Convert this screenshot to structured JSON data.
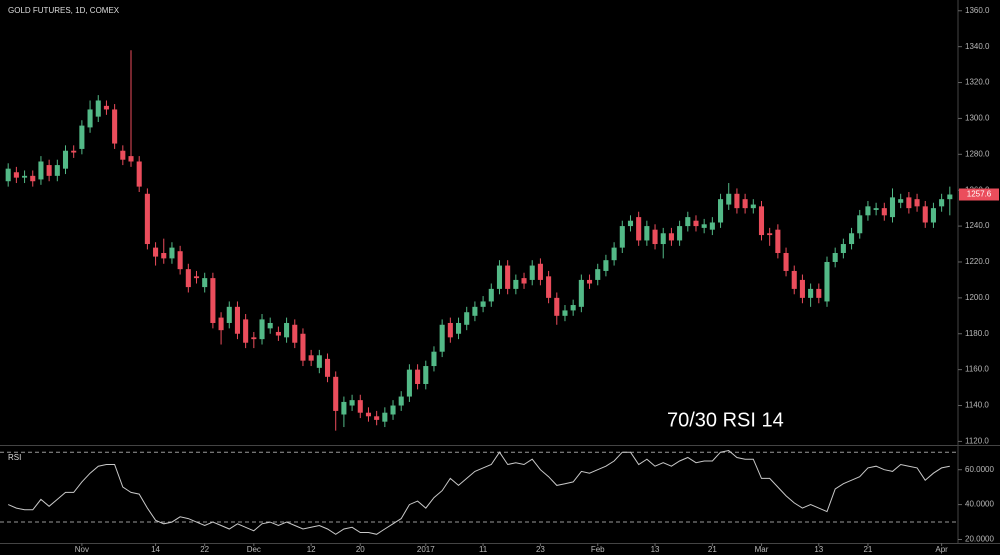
{
  "chart_data": [
    {
      "type": "candlestick",
      "title": "GOLD FUTURES, 1D, COMEX",
      "annotation": "70/30 RSI 14",
      "up_color": "#53b987",
      "down_color": "#eb4d5c",
      "xlim": [
        -1,
        116
      ],
      "xticks": [
        {
          "value": 9,
          "label": "Nov"
        },
        {
          "value": 18,
          "label": "14"
        },
        {
          "value": 24,
          "label": "22"
        },
        {
          "value": 30,
          "label": "Dec"
        },
        {
          "value": 37,
          "label": "12"
        },
        {
          "value": 43,
          "label": "20"
        },
        {
          "value": 51,
          "label": "2017"
        },
        {
          "value": 58,
          "label": "11"
        },
        {
          "value": 65,
          "label": "23"
        },
        {
          "value": 72,
          "label": "Feb"
        },
        {
          "value": 79,
          "label": "13"
        },
        {
          "value": 86,
          "label": "21"
        },
        {
          "value": 92,
          "label": "Mar"
        },
        {
          "value": 99,
          "label": "13"
        },
        {
          "value": 105,
          "label": "21"
        },
        {
          "value": 114,
          "label": "Apr"
        }
      ],
      "ylim": [
        1118,
        1366
      ],
      "yticks": [
        {
          "value": 1120,
          "label": "1120.0"
        },
        {
          "value": 1140,
          "label": "1140.0"
        },
        {
          "value": 1160,
          "label": "1160.0"
        },
        {
          "value": 1180,
          "label": "1180.0"
        },
        {
          "value": 1200,
          "label": "1200.0"
        },
        {
          "value": 1220,
          "label": "1220.0"
        },
        {
          "value": 1240,
          "label": "1240.0"
        },
        {
          "value": 1260,
          "label": "1260.0"
        },
        {
          "value": 1280,
          "label": "1280.0"
        },
        {
          "value": 1300,
          "label": "1300.0"
        },
        {
          "value": 1320,
          "label": "1320.0"
        },
        {
          "value": 1340,
          "label": "1340.0"
        },
        {
          "value": 1360,
          "label": "1360.0"
        }
      ],
      "last_price": 1257.6,
      "open": [
        1265,
        1270,
        1267,
        1268,
        1266,
        1274,
        1268,
        1272,
        1282,
        1283,
        1295,
        1301,
        1307,
        1305,
        1282,
        1279,
        1276,
        1258,
        1228,
        1225,
        1222,
        1226,
        1216,
        1212,
        1206,
        1211,
        1189,
        1186,
        1195,
        1188,
        1178,
        1177,
        1183,
        1181,
        1178,
        1185,
        1180,
        1168,
        1161,
        1166,
        1156,
        1135,
        1140,
        1143,
        1136,
        1134,
        1131,
        1135,
        1140,
        1145,
        1160,
        1152,
        1162,
        1170,
        1186,
        1180,
        1185,
        1190,
        1195,
        1198,
        1205,
        1218,
        1205,
        1211,
        1210,
        1219,
        1212,
        1200,
        1190,
        1193,
        1195,
        1210,
        1210,
        1215,
        1221,
        1228,
        1240,
        1245,
        1232,
        1238,
        1230,
        1236,
        1232,
        1240,
        1243,
        1239,
        1238,
        1242,
        1252,
        1258,
        1255,
        1250,
        1251,
        1236,
        1238,
        1225,
        1215,
        1210,
        1200,
        1205,
        1198,
        1220,
        1225,
        1230,
        1236,
        1246,
        1249,
        1250,
        1245,
        1253,
        1256,
        1255,
        1251,
        1242,
        1251,
        1255
      ],
      "high": [
        1275,
        1273,
        1271,
        1271,
        1279,
        1277,
        1277,
        1285,
        1285,
        1299,
        1310,
        1313,
        1310,
        1308,
        1285,
        1338,
        1279,
        1261,
        1231,
        1233,
        1231,
        1229,
        1219,
        1215,
        1214,
        1214,
        1192,
        1198,
        1198,
        1191,
        1181,
        1191,
        1189,
        1184,
        1189,
        1188,
        1183,
        1171,
        1171,
        1169,
        1159,
        1145,
        1146,
        1146,
        1139,
        1137,
        1139,
        1143,
        1148,
        1163,
        1163,
        1165,
        1173,
        1188,
        1189,
        1189,
        1195,
        1198,
        1201,
        1208,
        1221,
        1221,
        1213,
        1214,
        1221,
        1222,
        1215,
        1203,
        1196,
        1199,
        1213,
        1213,
        1219,
        1224,
        1231,
        1243,
        1246,
        1248,
        1243,
        1241,
        1239,
        1239,
        1243,
        1248,
        1246,
        1244,
        1245,
        1258,
        1264,
        1261,
        1258,
        1255,
        1254,
        1239,
        1241,
        1228,
        1218,
        1213,
        1208,
        1208,
        1223,
        1228,
        1233,
        1239,
        1249,
        1254,
        1253,
        1253,
        1261,
        1258,
        1259,
        1258,
        1254,
        1253,
        1258,
        1262
      ],
      "low": [
        1262,
        1264,
        1264,
        1262,
        1263,
        1265,
        1265,
        1269,
        1278,
        1280,
        1292,
        1298,
        1302,
        1283,
        1274,
        1273,
        1259,
        1227,
        1218,
        1219,
        1219,
        1213,
        1203,
        1208,
        1203,
        1183,
        1174,
        1183,
        1177,
        1172,
        1172,
        1174,
        1180,
        1176,
        1175,
        1172,
        1162,
        1162,
        1158,
        1153,
        1126,
        1128,
        1137,
        1133,
        1131,
        1129,
        1128,
        1132,
        1137,
        1142,
        1149,
        1149,
        1159,
        1167,
        1175,
        1177,
        1182,
        1187,
        1192,
        1195,
        1202,
        1202,
        1202,
        1205,
        1207,
        1207,
        1197,
        1185,
        1187,
        1190,
        1192,
        1205,
        1207,
        1212,
        1218,
        1225,
        1237,
        1229,
        1229,
        1227,
        1222,
        1229,
        1229,
        1237,
        1237,
        1236,
        1235,
        1239,
        1249,
        1247,
        1247,
        1247,
        1232,
        1229,
        1222,
        1212,
        1202,
        1197,
        1195,
        1197,
        1195,
        1217,
        1222,
        1227,
        1233,
        1243,
        1246,
        1243,
        1242,
        1250,
        1247,
        1248,
        1239,
        1239,
        1248,
        1246
      ],
      "close": [
        1272,
        1267,
        1268,
        1265,
        1276,
        1268,
        1274,
        1282,
        1281,
        1296,
        1305,
        1310,
        1305,
        1286,
        1277,
        1276,
        1262,
        1230,
        1223,
        1222,
        1228,
        1216,
        1206,
        1211,
        1211,
        1186,
        1182,
        1195,
        1180,
        1175,
        1177,
        1188,
        1186,
        1179,
        1186,
        1175,
        1165,
        1165,
        1168,
        1156,
        1137,
        1142,
        1143,
        1136,
        1134,
        1132,
        1136,
        1140,
        1145,
        1160,
        1152,
        1162,
        1170,
        1185,
        1178,
        1186,
        1192,
        1195,
        1198,
        1205,
        1218,
        1205,
        1210,
        1208,
        1218,
        1210,
        1200,
        1190,
        1193,
        1196,
        1210,
        1208,
        1216,
        1221,
        1228,
        1240,
        1243,
        1232,
        1240,
        1230,
        1236,
        1232,
        1240,
        1245,
        1240,
        1241,
        1242,
        1255,
        1258,
        1250,
        1250,
        1252,
        1235,
        1235,
        1225,
        1215,
        1205,
        1200,
        1205,
        1200,
        1220,
        1225,
        1230,
        1236,
        1246,
        1251,
        1250,
        1246,
        1256,
        1255,
        1250,
        1251,
        1242,
        1250,
        1255,
        1257.6
      ]
    },
    {
      "type": "line",
      "title": "RSI",
      "color": "#c8c8c8",
      "ylim": [
        18,
        73
      ],
      "yticks": [
        {
          "value": 20,
          "label": "20.0000"
        },
        {
          "value": 40,
          "label": "40.0000"
        },
        {
          "value": 60,
          "label": "60.0000"
        }
      ],
      "bands": [
        70,
        30
      ],
      "values": [
        40,
        38,
        37,
        37,
        43,
        39,
        43,
        47,
        47,
        53,
        58,
        62,
        63,
        63,
        50,
        47,
        46,
        38,
        31,
        29,
        30,
        33,
        32,
        30,
        28,
        30,
        28,
        26,
        29,
        27,
        25,
        29,
        30,
        28,
        30,
        28,
        26,
        27,
        28,
        26,
        23,
        26,
        27,
        24,
        24,
        23,
        26,
        29,
        32,
        40,
        42,
        38,
        44,
        48,
        55,
        51,
        55,
        59,
        61,
        63,
        70,
        63,
        64,
        63,
        66,
        60,
        56,
        51,
        52,
        53,
        59,
        58,
        60,
        62,
        65,
        70,
        70,
        63,
        66,
        62,
        64,
        62,
        65,
        67,
        64,
        65,
        65,
        70,
        71,
        67,
        66,
        66,
        55,
        55,
        50,
        45,
        41,
        38,
        40,
        38,
        36,
        49,
        52,
        54,
        56,
        61,
        62,
        60,
        59,
        63,
        62,
        61,
        54,
        58,
        61,
        62
      ]
    }
  ]
}
